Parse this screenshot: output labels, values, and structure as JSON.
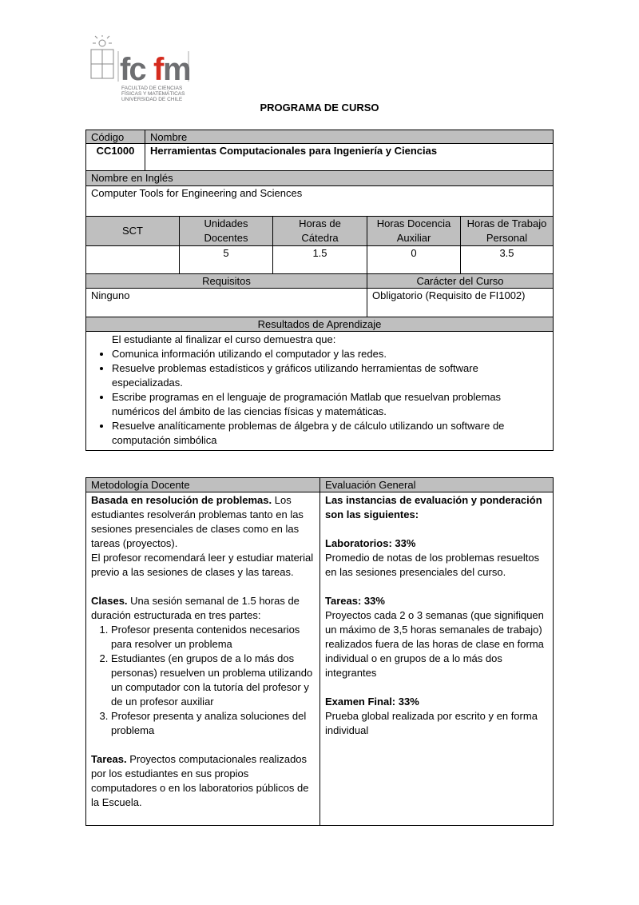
{
  "logo": {
    "text": "fcfm",
    "lines": [
      "FACULTAD DE CIENCIAS",
      "FÍSICAS Y MATEMÁTICAS",
      "UNIVERSIDAD DE CHILE"
    ],
    "accent": "#d52b1e",
    "gray": "#6d6e71"
  },
  "title": "PROGRAMA DE CURSO",
  "course": {
    "code_label": "Código",
    "name_label": "Nombre",
    "code": "CC1000",
    "name": "Herramientas Computacionales para Ingeniería y Ciencias",
    "english_label": "Nombre en Inglés",
    "english": "Computer Tools for Engineering and Sciences"
  },
  "hours": {
    "headers": [
      "SCT",
      "Unidades Docentes",
      "Horas de Cátedra",
      "Horas Docencia Auxiliar",
      "Horas de Trabajo Personal"
    ],
    "values": [
      "",
      "5",
      "1.5",
      "0",
      "3.5"
    ]
  },
  "req": {
    "label": "Requisitos",
    "value": "Ninguno",
    "char_label": "Carácter del Curso",
    "char_value": "Obligatorio (Requisito de FI1002)"
  },
  "results": {
    "label": "Resultados de Aprendizaje",
    "intro": "El estudiante al finalizar el curso demuestra que:",
    "items": [
      "Comunica información utilizando el computador y las redes.",
      "Resuelve problemas estadísticos y gráficos utilizando herramientas de software especializadas.",
      "Escribe programas en el lenguaje de programación Matlab que resuelvan problemas numéricos del ámbito de las ciencias físicas y matemáticas.",
      "Resuelve analíticamente problemas de álgebra y de cálculo utilizando un software de computación simbólica"
    ]
  },
  "method": {
    "label": "Metodología Docente",
    "p1_bold": "Basada en resolución de problemas.",
    "p1": " Los estudiantes resolverán problemas tanto en las sesiones presenciales de clases como en las tareas (proyectos).",
    "p2": "El profesor recomendará leer y estudiar material previo a las sesiones de clases y las tareas.",
    "clases_bold": "Clases.",
    "clases": " Una sesión semanal de 1.5 horas de duración estructurada  en tres partes:",
    "steps": [
      "Profesor presenta contenidos necesarios para resolver un problema",
      "Estudiantes (en grupos de a lo más dos personas) resuelven un problema utilizando un computador con la tutoría del profesor y de un profesor auxiliar",
      "Profesor presenta y analiza soluciones del problema"
    ],
    "tareas_bold": "Tareas.",
    "tareas": " Proyectos computacionales realizados por los estudiantes en sus propios computadores o en los laboratorios públicos de la Escuela."
  },
  "eval": {
    "label": "Evaluación General",
    "intro": "Las instancias de evaluación y ponderación son las siguientes:",
    "items": [
      {
        "title": "Laboratorios: 33%",
        "text": "Promedio de notas de los problemas resueltos en las sesiones presenciales del curso."
      },
      {
        "title": "Tareas: 33%",
        "text": "Proyectos cada 2 o 3 semanas (que signifiquen un máximo de 3,5 horas semanales de trabajo) realizados fuera de las horas de clase en forma individual o en grupos de a lo más dos integrantes"
      },
      {
        "title": "Examen Final: 33%",
        "text": "Prueba global realizada por escrito y en forma individual"
      }
    ]
  }
}
